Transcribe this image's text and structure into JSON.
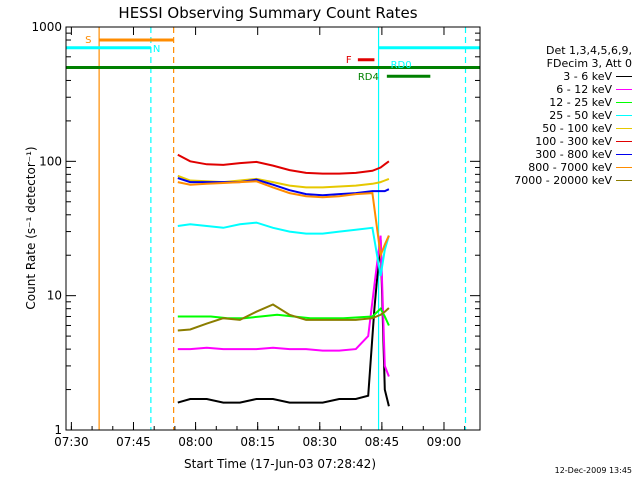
{
  "chart_data": {
    "type": "line",
    "title": "HESSI Observing Summary Count Rates",
    "xlabel": "Start Time (17-Jun-03 07:28:42)",
    "ylabel": "Count Rate (s⁻¹ detector⁻¹)",
    "x_axis": {
      "unit": "minutes after 07:28:42",
      "range": [
        0,
        100
      ],
      "ticks": [
        {
          "value": 1.3,
          "label": "07:30"
        },
        {
          "value": 16.3,
          "label": "07:45"
        },
        {
          "value": 31.3,
          "label": "08:00"
        },
        {
          "value": 46.3,
          "label": "08:15"
        },
        {
          "value": 61.3,
          "label": "08:30"
        },
        {
          "value": 76.3,
          "label": "08:45"
        },
        {
          "value": 91.3,
          "label": "09:00"
        }
      ]
    },
    "y_axis": {
      "scale": "log",
      "range": [
        1,
        1000
      ],
      "ticks": [
        {
          "value": 1,
          "label": "1"
        },
        {
          "value": 10,
          "label": "10"
        },
        {
          "value": 100,
          "label": "100"
        },
        {
          "value": 1000,
          "label": "1000"
        }
      ]
    },
    "legend": {
      "placement": "right",
      "header": [
        "Det 1,3,4,5,6,9,",
        "FDecim 3, Att 0"
      ]
    },
    "series": [
      {
        "name": "3 - 6 keV",
        "color": "#000000",
        "x": [
          27,
          30,
          34,
          38,
          42,
          46,
          50,
          54,
          58,
          62,
          66,
          70,
          73,
          74.5,
          76,
          77,
          78
        ],
        "y": [
          1.6,
          1.7,
          1.7,
          1.6,
          1.6,
          1.7,
          1.7,
          1.6,
          1.6,
          1.6,
          1.7,
          1.7,
          1.8,
          8,
          26,
          2,
          1.5
        ]
      },
      {
        "name": "6 - 12 keV",
        "color": "#ff00ff",
        "x": [
          27,
          30,
          34,
          38,
          42,
          46,
          50,
          54,
          58,
          62,
          66,
          70,
          73,
          74.5,
          76,
          77,
          78
        ],
        "y": [
          4,
          4,
          4.1,
          4,
          4,
          4,
          4.1,
          4,
          4,
          3.9,
          3.9,
          4,
          5,
          12,
          28,
          3,
          2.5
        ]
      },
      {
        "name": "12 - 25 keV",
        "color": "#00ff00",
        "x": [
          27,
          31,
          35,
          39,
          43,
          47,
          51,
          55,
          59,
          63,
          67,
          71,
          74,
          76,
          77,
          78
        ],
        "y": [
          7,
          7,
          7,
          6.8,
          6.8,
          7,
          7.2,
          7,
          6.8,
          6.8,
          6.8,
          6.9,
          7,
          8,
          7,
          6
        ]
      },
      {
        "name": "25 - 50 keV",
        "color": "#00ffff",
        "x": [
          27,
          30,
          34,
          38,
          42,
          46,
          50,
          54,
          58,
          62,
          66,
          70,
          74,
          76,
          77,
          78
        ],
        "y": [
          33,
          34,
          33,
          32,
          34,
          35,
          32,
          30,
          29,
          29,
          30,
          31,
          32,
          14,
          22,
          28
        ]
      },
      {
        "name": "50 - 100 keV",
        "color": "#e6c800",
        "x": [
          27,
          30,
          34,
          38,
          42,
          46,
          50,
          54,
          58,
          62,
          66,
          70,
          74,
          76,
          77,
          78
        ],
        "y": [
          78,
          72,
          71,
          70,
          72,
          74,
          70,
          66,
          64,
          64,
          65,
          66,
          68,
          70,
          72,
          74
        ]
      },
      {
        "name": "100 - 300 keV",
        "color": "#e00000",
        "x": [
          27,
          30,
          34,
          38,
          42,
          46,
          50,
          54,
          58,
          62,
          66,
          70,
          74,
          76,
          77,
          78
        ],
        "y": [
          112,
          100,
          95,
          94,
          97,
          99,
          93,
          86,
          82,
          81,
          81,
          82,
          85,
          90,
          95,
          100
        ]
      },
      {
        "name": "300 - 800 keV",
        "color": "#0000ee",
        "x": [
          27,
          30,
          34,
          38,
          42,
          46,
          50,
          54,
          58,
          62,
          66,
          70,
          74,
          76,
          77,
          78
        ],
        "y": [
          75,
          70,
          70,
          70,
          70,
          73,
          67,
          61,
          57,
          56,
          57,
          58,
          60,
          60,
          60,
          62
        ]
      },
      {
        "name": "800 - 7000 keV",
        "color": "#ff8c00",
        "x": [
          27,
          30,
          34,
          38,
          42,
          46,
          50,
          54,
          58,
          62,
          66,
          70,
          74,
          76,
          77,
          78
        ],
        "y": [
          70,
          67,
          68,
          69,
          70,
          71,
          64,
          58,
          55,
          54,
          55,
          57,
          58,
          20,
          24,
          28
        ]
      },
      {
        "name": "7000 - 20000 keV",
        "color": "#8b7d00",
        "x": [
          27,
          30,
          34,
          38,
          42,
          46,
          50,
          54,
          58,
          62,
          66,
          70,
          74,
          76,
          77,
          78
        ],
        "y": [
          5.5,
          5.6,
          6.2,
          6.8,
          6.6,
          7.6,
          8.6,
          7.2,
          6.6,
          6.6,
          6.6,
          6.6,
          6.8,
          7.2,
          7.6,
          8.1
        ]
      }
    ],
    "annotations": [
      {
        "label": "S",
        "color": "#ff8c00",
        "y": 800,
        "x_start": 8,
        "x_end": 26
      },
      {
        "label": "N",
        "color": "#00ffff",
        "y": 700,
        "x_start": 0,
        "x_end": 20.5
      },
      {
        "label": "F",
        "color": "#e00000",
        "y": 570,
        "x_start": 70.5,
        "x_end": 74.5
      },
      {
        "label": "RD0",
        "color": "#00ffff",
        "y": 700,
        "x_start": 75.5,
        "x_end": 100
      },
      {
        "label": "RD4",
        "color": "#008000",
        "y": 430,
        "x_start": 77.5,
        "x_end": 88
      }
    ],
    "baseline": {
      "color": "#008000",
      "y": 500,
      "x_start": 0,
      "x_end": 100
    },
    "vertical_markers": [
      {
        "x": 8,
        "color": "#ff8c00",
        "style": "solid"
      },
      {
        "x": 20.5,
        "color": "#00ffff",
        "style": "dashed"
      },
      {
        "x": 26,
        "color": "#ff8c00",
        "style": "dashed"
      },
      {
        "x": 75.5,
        "color": "#00ffff",
        "style": "solid"
      },
      {
        "x": 96.5,
        "color": "#00ffff",
        "style": "dashed"
      }
    ],
    "grid": false
  },
  "timestamp": "12-Dec-2009 13:45"
}
